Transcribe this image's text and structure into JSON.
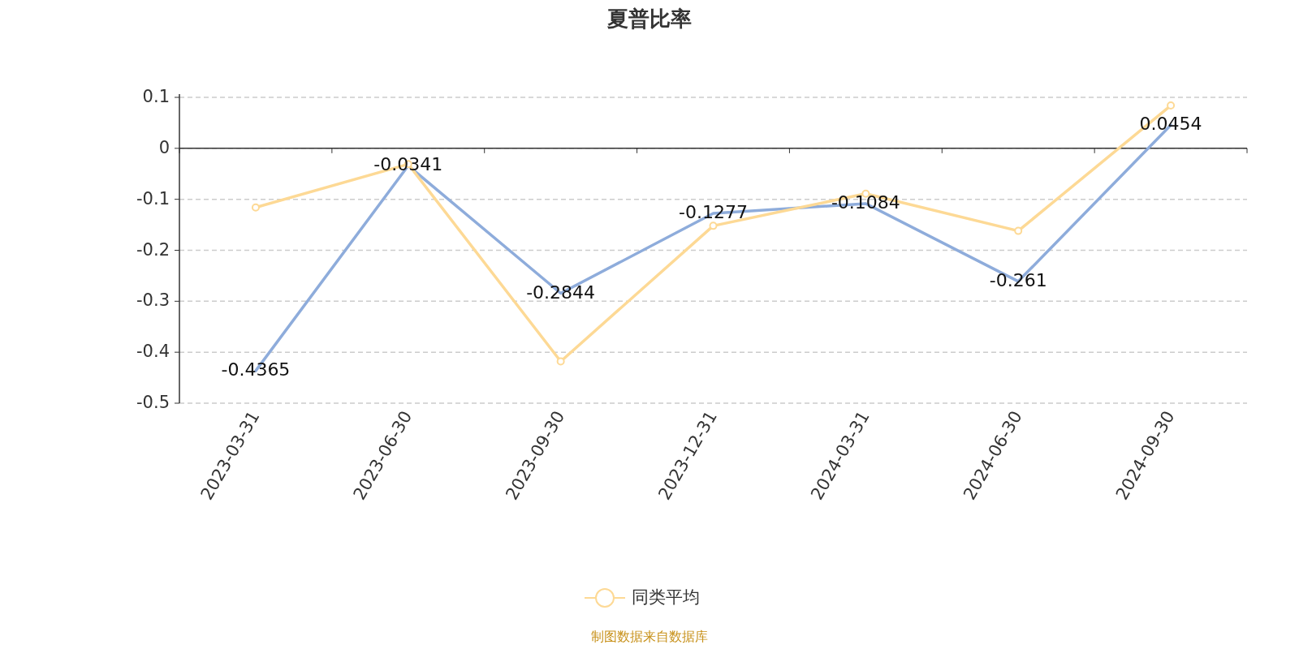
{
  "chart_data": {
    "type": "line",
    "title": "夏普比率",
    "categories": [
      "2023-03-31",
      "2023-06-30",
      "2023-09-30",
      "2023-12-31",
      "2024-03-31",
      "2024-06-30",
      "2024-09-30"
    ],
    "series": [
      {
        "color": "#8eacdb",
        "marker": "none",
        "values": [
          -0.4365,
          -0.0341,
          -0.2844,
          -0.1277,
          -0.1084,
          -0.261,
          0.0454
        ],
        "value_labels": [
          "-0.4365",
          "-0.0341",
          "-0.2844",
          "-0.1277",
          "-0.1084",
          "-0.261",
          "0.0454"
        ]
      },
      {
        "name": "同类平均",
        "color": "#fdd995",
        "marker": "circle",
        "values": [
          -0.116,
          -0.031,
          -0.418,
          -0.152,
          -0.089,
          -0.162,
          0.084
        ]
      }
    ],
    "ylim": [
      -0.5,
      0.1
    ],
    "yticks": [
      -0.5,
      -0.4,
      -0.3,
      -0.2,
      -0.1,
      0,
      0.1
    ],
    "grid": "y",
    "legend": "bottom",
    "line_style": "solid",
    "annotations": [
      "制图数据来自数据库"
    ]
  }
}
